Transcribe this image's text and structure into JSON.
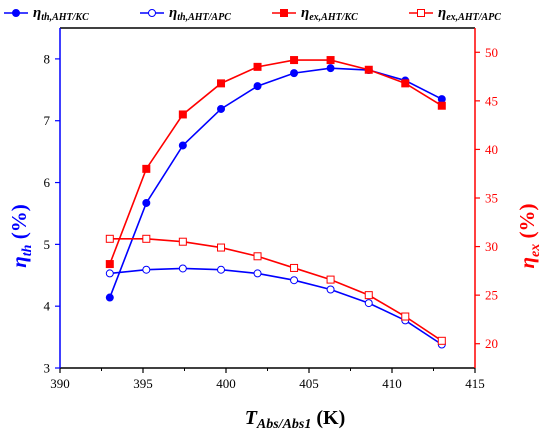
{
  "chart_data": {
    "type": "line",
    "x_axis": {
      "label_main": "T",
      "label_sub": "Abs/Abs1",
      "label_unit": " (K)",
      "lim": [
        390,
        415
      ],
      "ticks": [
        390,
        395,
        400,
        405,
        410,
        415
      ]
    },
    "y_left": {
      "label_main": "η",
      "label_sub": "th",
      "label_unit": " (%)",
      "color": "#0000ff",
      "lim": [
        3,
        8.5
      ],
      "ticks": [
        3,
        4,
        5,
        6,
        7,
        8
      ]
    },
    "y_right": {
      "label_main": "η",
      "label_sub": "ex",
      "label_unit": " (%)",
      "color": "#ff0000",
      "lim": [
        17.5,
        52.5
      ],
      "ticks": [
        20,
        25,
        30,
        35,
        40,
        45,
        50
      ]
    },
    "x": [
      393.0,
      395.2,
      397.4,
      399.7,
      401.9,
      404.1,
      406.3,
      408.6,
      410.8,
      413.0
    ],
    "series": [
      {
        "name_main": "η",
        "name_sub": "th,AHT/KC",
        "axis": "left",
        "color": "#0000ff",
        "marker": "circle-filled",
        "values": [
          4.14,
          5.67,
          6.6,
          7.19,
          7.56,
          7.77,
          7.85,
          7.82,
          7.65,
          7.35
        ]
      },
      {
        "name_main": "η",
        "name_sub": "th,AHT/APC",
        "axis": "left",
        "color": "#0000ff",
        "marker": "circle-open",
        "values": [
          4.53,
          4.59,
          4.61,
          4.59,
          4.53,
          4.42,
          4.27,
          4.05,
          3.77,
          3.38
        ]
      },
      {
        "name_main": "η",
        "name_sub": "ex,AHT/KC",
        "axis": "right",
        "color": "#ff0000",
        "marker": "square-filled",
        "values": [
          28.2,
          38.0,
          43.6,
          46.8,
          48.5,
          49.2,
          49.2,
          48.2,
          46.8,
          44.5
        ]
      },
      {
        "name_main": "η",
        "name_sub": "ex,AHT/APC",
        "axis": "right",
        "color": "#ff0000",
        "marker": "square-open",
        "values": [
          30.8,
          30.8,
          30.5,
          29.9,
          29.0,
          27.8,
          26.6,
          25.0,
          22.8,
          20.3
        ]
      }
    ]
  }
}
